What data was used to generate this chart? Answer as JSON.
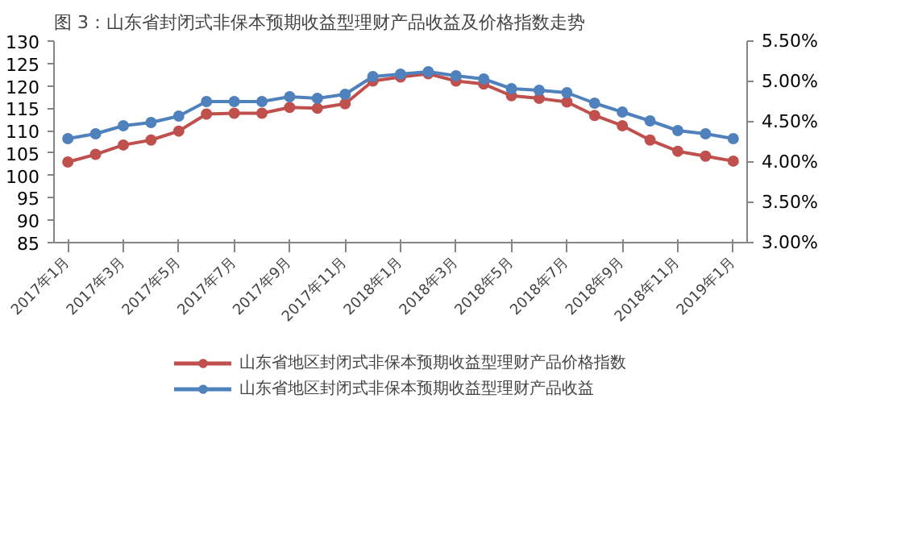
{
  "chart_data": {
    "type": "line",
    "title": "图 3：山东省封闭式非保本预期收益型理财产品收益及价格指数走势",
    "categories": [
      "2017年1月",
      null,
      "2017年3月",
      null,
      "2017年5月",
      null,
      "2017年7月",
      null,
      "2017年9月",
      null,
      "2017年11月",
      null,
      "2018年1月",
      null,
      "2018年3月",
      null,
      "2018年5月",
      null,
      "2018年7月",
      null,
      "2018年9月",
      null,
      "2018年11月",
      null,
      "2019年1月"
    ],
    "series": [
      {
        "name": "山东省地区封闭式非保本预期收益型理财产品价格指数",
        "color": "#c0504d",
        "values": [
          103.0,
          104.7,
          106.8,
          107.9,
          109.9,
          113.7,
          113.9,
          113.9,
          115.2,
          115.0,
          116.0,
          121.1,
          122.0,
          122.7,
          121.1,
          120.4,
          117.8,
          117.2,
          116.4,
          113.4,
          111.1,
          107.9,
          105.4,
          104.3,
          103.2
        ]
      },
      {
        "name": "山东省地区封闭式非保本预期收益型理财产品收益",
        "color": "#4f81bd",
        "axis": "y2",
        "values": [
          4.29,
          4.35,
          4.45,
          4.49,
          4.57,
          4.75,
          4.75,
          4.75,
          4.81,
          4.79,
          4.84,
          5.06,
          5.09,
          5.12,
          5.07,
          5.03,
          4.91,
          4.89,
          4.86,
          4.73,
          4.62,
          4.51,
          4.39,
          4.35,
          4.29
        ]
      }
    ],
    "ylim": [
      85,
      130
    ],
    "yticks": [
      85,
      90,
      95,
      100,
      105,
      110,
      115,
      120,
      125,
      130
    ],
    "y2lim": [
      3,
      5.5
    ],
    "y2ticks": [
      {
        "value": 3,
        "label": "3.00%"
      },
      {
        "value": 3.5,
        "label": "3.50%"
      },
      {
        "value": 4,
        "label": "4.00%"
      },
      {
        "value": 4.5,
        "label": "4.50%"
      },
      {
        "value": 5,
        "label": "5.00%"
      },
      {
        "value": 5.5,
        "label": "5.50%"
      }
    ],
    "marker": "circle",
    "line_style": "solid",
    "grid": false,
    "legend": "bottom"
  }
}
